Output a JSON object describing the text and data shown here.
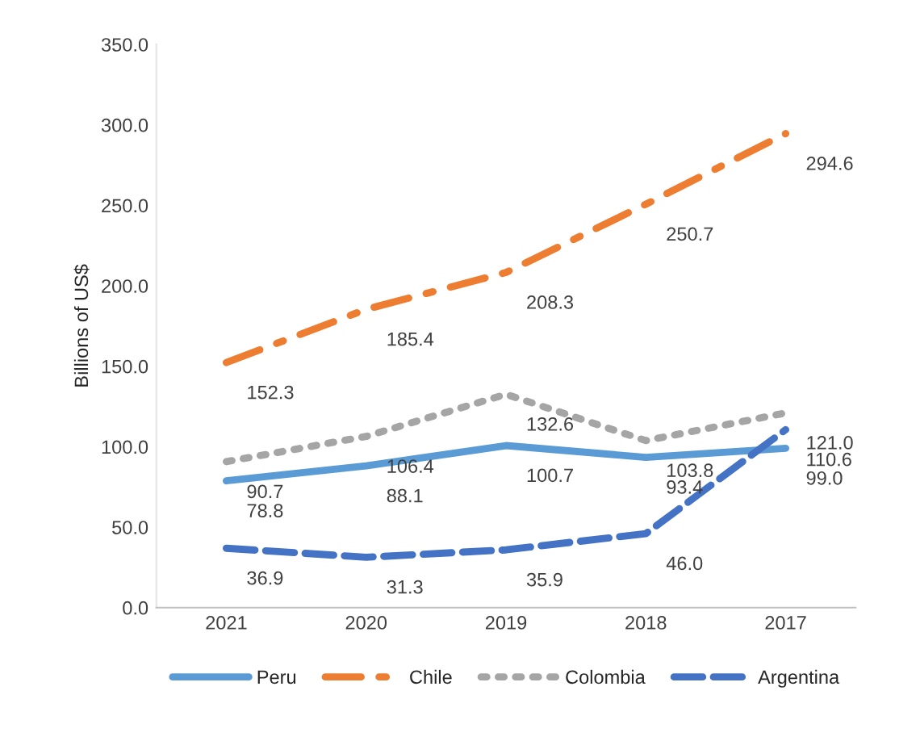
{
  "chart_data": {
    "type": "line",
    "ylabel": "Billions of US$",
    "categories": [
      "2021",
      "2020",
      "2019",
      "2018",
      "2017"
    ],
    "series": [
      {
        "name": "Peru",
        "color": "#5b9bd5",
        "line_style": "solid",
        "values": [
          78.8,
          88.1,
          100.7,
          93.4,
          99.0
        ],
        "value_labels": [
          "78.8",
          "88.1",
          "100.7",
          "93.4",
          "99.0"
        ]
      },
      {
        "name": "Chile",
        "color": "#ed7d31",
        "line_style": "dashdot",
        "values": [
          152.3,
          185.4,
          208.3,
          250.7,
          294.6
        ],
        "value_labels": [
          "152.3",
          "185.4",
          "208.3",
          "250.7",
          "294.6"
        ]
      },
      {
        "name": "Colombia",
        "color": "#a5a5a5",
        "line_style": "dotted",
        "values": [
          90.7,
          106.4,
          132.6,
          103.8,
          121.0
        ],
        "value_labels": [
          "90.7",
          "106.4",
          "132.6",
          "103.8",
          "121.0"
        ]
      },
      {
        "name": "Argentina",
        "color": "#4472c4",
        "line_style": "dashed",
        "values": [
          36.9,
          31.3,
          35.9,
          46.0,
          110.6
        ],
        "value_labels": [
          "36.9",
          "31.3",
          "35.9",
          "46.0",
          "110.6"
        ]
      }
    ],
    "ylim": [
      0,
      350
    ],
    "yticks": [
      {
        "value": 0,
        "label": "0.0"
      },
      {
        "value": 50,
        "label": "50.0"
      },
      {
        "value": 100,
        "label": "100.0"
      },
      {
        "value": 150,
        "label": "150.0"
      },
      {
        "value": 200,
        "label": "200.0"
      },
      {
        "value": 250,
        "label": "250.0"
      },
      {
        "value": 300,
        "label": "300.0"
      },
      {
        "value": 350,
        "label": "350.0"
      }
    ],
    "legend": "bottom",
    "grid": false,
    "marker": "none"
  }
}
